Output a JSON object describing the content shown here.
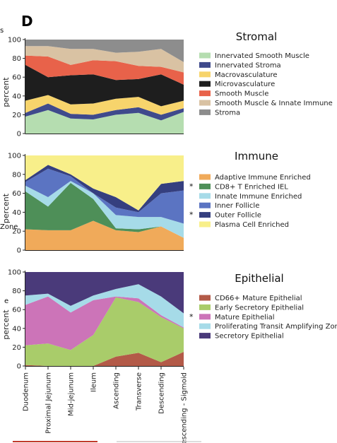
{
  "figure": {
    "panel_letter": "D",
    "cut_left_labels": [
      "s",
      "Zone",
      "e"
    ]
  },
  "chart_data": [
    {
      "type": "area",
      "stacked": true,
      "title": "Stromal",
      "ylabel": "percent",
      "ylim": [
        0,
        100
      ],
      "yticks": [
        0,
        20,
        40,
        60,
        80,
        100
      ],
      "categories": [
        "Duodenum",
        "Proximal Jejunum",
        "Mid-jejunum",
        "Ileum",
        "Ascending",
        "Transverse",
        "Descending",
        "Descending - Sigmoid"
      ],
      "legend_position": "right",
      "series": [
        {
          "name": "Innervated Smooth Muscle",
          "color": "#b5ddb0",
          "marked": false,
          "values": [
            18,
            25,
            16,
            15,
            20,
            22,
            14,
            23
          ]
        },
        {
          "name": "Innervated Stroma",
          "color": "#3f4a8c",
          "marked": false,
          "values": [
            4,
            7,
            5,
            5,
            5,
            6,
            6,
            4
          ]
        },
        {
          "name": "Macrovasculature",
          "color": "#f7d46c",
          "marked": false,
          "values": [
            13,
            9,
            10,
            12,
            12,
            11,
            9,
            8
          ]
        },
        {
          "name": "Microvasculature",
          "color": "#1e1e1e",
          "marked": false,
          "values": [
            38,
            19,
            31,
            31,
            20,
            19,
            34,
            17
          ]
        },
        {
          "name": "Smooth Muscle",
          "color": "#e8624a",
          "marked": false,
          "values": [
            10,
            22,
            11,
            15,
            20,
            14,
            8,
            13
          ]
        },
        {
          "name": "Smooth Muscle & Innate Immune",
          "color": "#d9c2a3",
          "marked": false,
          "values": [
            10,
            11,
            17,
            12,
            9,
            15,
            19,
            11
          ]
        },
        {
          "name": "Stroma",
          "color": "#8d8d8d",
          "marked": false,
          "values": [
            7,
            7,
            10,
            10,
            14,
            13,
            10,
            24
          ]
        }
      ]
    },
    {
      "type": "area",
      "stacked": true,
      "title": "Immune",
      "ylabel": "percent",
      "ylim": [
        0,
        100
      ],
      "yticks": [
        0,
        20,
        40,
        60,
        80,
        100
      ],
      "categories": [
        "Duodenum",
        "Proximal Jejunum",
        "Mid-jejunum",
        "Ileum",
        "Ascending",
        "Transverse",
        "Descending",
        "Descending - Sigmoid"
      ],
      "legend_position": "right",
      "series": [
        {
          "name": "Adaptive Immune Enriched",
          "color": "#f0aa5a",
          "marked": false,
          "values": [
            22,
            21,
            21,
            31,
            21,
            19,
            25,
            13
          ]
        },
        {
          "name": "CD8+ T Enriched IEL",
          "color": "#4e8f58",
          "marked": true,
          "values": [
            40,
            25,
            50,
            23,
            2,
            3,
            0,
            0
          ]
        },
        {
          "name": "Innate Immune Enriched",
          "color": "#a6dbe8",
          "marked": false,
          "values": [
            6,
            10,
            2,
            6,
            14,
            13,
            10,
            15
          ]
        },
        {
          "name": "Inner Follicle",
          "color": "#5b74c2",
          "marked": false,
          "values": [
            4,
            30,
            5,
            0,
            8,
            5,
            25,
            35
          ]
        },
        {
          "name": "Outer Follicle",
          "color": "#353f7f",
          "marked": true,
          "values": [
            2,
            4,
            2,
            5,
            11,
            2,
            10,
            10
          ]
        },
        {
          "name": "Plasma Cell Enriched",
          "color": "#f8ef8a",
          "marked": false,
          "values": [
            26,
            10,
            20,
            35,
            44,
            58,
            30,
            27
          ]
        }
      ]
    },
    {
      "type": "area",
      "stacked": true,
      "title": "Epithelial",
      "ylabel": "percent",
      "ylim": [
        0,
        100
      ],
      "yticks": [
        0,
        20,
        40,
        60,
        80,
        100
      ],
      "categories": [
        "Duodenum",
        "Proximal Jejunum",
        "Mid-jejunum",
        "Ileum",
        "Ascending",
        "Transverse",
        "Descending",
        "Descending - Sigmoid"
      ],
      "legend_position": "right",
      "series": [
        {
          "name": "CD66+ Mature Epithelial",
          "color": "#b35a48",
          "marked": false,
          "values": [
            1,
            0,
            0,
            0,
            10,
            14,
            4,
            15
          ]
        },
        {
          "name": "Early Secretory Epithelial",
          "color": "#a9cc6a",
          "marked": false,
          "values": [
            21,
            24,
            17,
            33,
            63,
            54,
            48,
            25
          ]
        },
        {
          "name": "Mature Epithelial",
          "color": "#cc74b8",
          "marked": true,
          "values": [
            43,
            50,
            40,
            37,
            1,
            4,
            2,
            1
          ]
        },
        {
          "name": "Proliferating Transit Amplifying Zone",
          "color": "#a6dbe8",
          "marked": false,
          "values": [
            10,
            3,
            7,
            5,
            8,
            15,
            20,
            15
          ]
        },
        {
          "name": "Secretory Epithelial",
          "color": "#4a3a7a",
          "marked": false,
          "values": [
            25,
            23,
            36,
            25,
            18,
            13,
            26,
            44
          ]
        }
      ]
    }
  ]
}
